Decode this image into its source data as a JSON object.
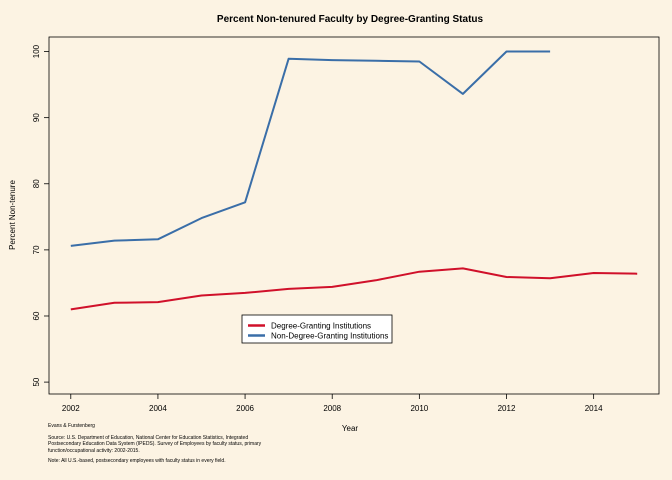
{
  "chart_data": {
    "type": "line",
    "title": "Percent Non-tenured Faculty by Degree-Granting Status",
    "xlabel": "Year",
    "ylabel": "Percent Non-tenure",
    "xlim": [
      2001.5,
      2015.5
    ],
    "ylim": [
      48.2,
      102.2
    ],
    "xticks": [
      2002,
      2004,
      2006,
      2008,
      2010,
      2012,
      2014
    ],
    "yticks": [
      50,
      60,
      70,
      80,
      90,
      100
    ],
    "grid": false,
    "legend_position": "bottom-center",
    "series": [
      {
        "name": "Degree-Granting Institutions",
        "color": "#d0102a",
        "x": [
          2002,
          2003,
          2004,
          2005,
          2006,
          2007,
          2008,
          2009,
          2010,
          2011,
          2012,
          2013,
          2014,
          2015
        ],
        "y": [
          61.0,
          62.0,
          62.1,
          63.1,
          63.5,
          64.1,
          64.4,
          65.4,
          66.7,
          67.2,
          65.9,
          65.7,
          66.5,
          66.4
        ]
      },
      {
        "name": "Non-Degree-Granting Institutions",
        "color": "#3a6ea8",
        "x": [
          2002,
          2003,
          2004,
          2005,
          2006,
          2007,
          2008,
          2009,
          2010,
          2011,
          2012,
          2013
        ],
        "y": [
          70.6,
          71.4,
          71.6,
          74.8,
          77.2,
          98.9,
          98.7,
          98.6,
          98.5,
          93.6,
          100.0,
          100.0
        ]
      }
    ]
  },
  "notes": {
    "credit": "Evans & Furstenberg",
    "source": "Source: U.S. Department of Education, National Center for Education Statistics, Integrated\n Postsecondary Education Data System (IPEDS).  Survey of Employees by faculty status, primary\n function/occupational activity: 2002-2015.",
    "note": "Note: All U.S.-based, postsecondary employees with faculty status in every field."
  }
}
